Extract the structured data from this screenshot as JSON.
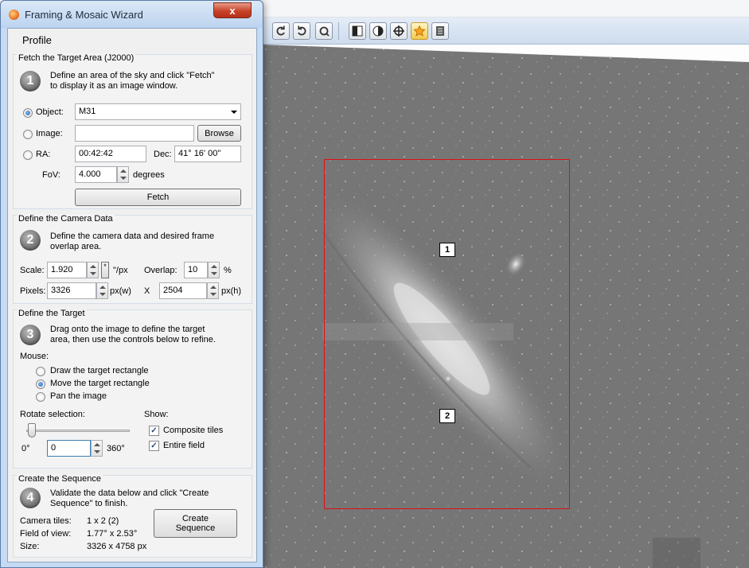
{
  "dialog": {
    "title": "Framing & Mosaic Wizard",
    "close_glyph": "x",
    "profile_label": "Profile"
  },
  "fetch": {
    "group_title": "Fetch the Target Area (J2000)",
    "step_number": "1",
    "instructions_line1": "Define an area of the sky and click \"Fetch\"",
    "instructions_line2": "to display it as an image window.",
    "object_label": "Object:",
    "object_value": "M31",
    "image_label": "Image:",
    "image_value": "",
    "browse_label": "Browse",
    "ra_label": "RA:",
    "ra_value": "00:42:42",
    "dec_label": "Dec:",
    "dec_value": "41° 16' 00\"",
    "fov_label": "FoV:",
    "fov_value": "4.000",
    "fov_unit": "degrees",
    "fetch_button": "Fetch",
    "selected_source": "object"
  },
  "camera": {
    "group_title": "Define the Camera Data",
    "step_number": "2",
    "instructions_line1": "Define the camera data and desired frame",
    "instructions_line2": "overlap area.",
    "scale_label": "Scale:",
    "scale_value": "1.920",
    "scale_extra_button": "*",
    "scale_unit": "\"/px",
    "overlap_label": "Overlap:",
    "overlap_value": "10",
    "overlap_unit": "%",
    "pixels_label": "Pixels:",
    "pixels_w_value": "3326",
    "pixels_w_unit": "px(w)",
    "times_label": "X",
    "pixels_h_value": "2504",
    "pixels_h_unit": "px(h)"
  },
  "target": {
    "group_title": "Define the Target",
    "step_number": "3",
    "instructions_line1": "Drag onto the image to define the target",
    "instructions_line2": "area, then use the controls below to refine.",
    "mouse_label": "Mouse:",
    "mouse_options": [
      {
        "label": "Draw the target rectangle",
        "selected": false
      },
      {
        "label": "Move the target rectangle",
        "selected": true
      },
      {
        "label": "Pan the image",
        "selected": false
      }
    ],
    "rotate_label": "Rotate selection:",
    "rotate_min_label": "0°",
    "rotate_value": "0",
    "rotate_max_label": "360°",
    "show_label": "Show:",
    "show_options": [
      {
        "label": "Composite tiles",
        "checked": true
      },
      {
        "label": "Entire field",
        "checked": true
      }
    ]
  },
  "sequence": {
    "group_title": "Create the Sequence",
    "step_number": "4",
    "instructions_line1": "Validate the data below and click \"Create",
    "instructions_line2": "Sequence\" to finish.",
    "camera_tiles_label": "Camera tiles:",
    "camera_tiles_value": "1 x 2 (2)",
    "fov_label": "Field of view:",
    "fov_value": "1.77° x 2.53°",
    "size_label": "Size:",
    "size_value": "3326 x 4758 px",
    "create_button_line1": "Create",
    "create_button_line2": "Sequence"
  },
  "image_view": {
    "tile_labels": [
      "1",
      "2"
    ],
    "target_color": "#e01010"
  },
  "toolbar": {
    "icons": [
      "rotate-left-icon",
      "rotate-right-icon",
      "reset-rotation-icon",
      "contrast-icon",
      "halftone-icon",
      "crosshair-icon",
      "star-icon",
      "stack-icon"
    ]
  }
}
